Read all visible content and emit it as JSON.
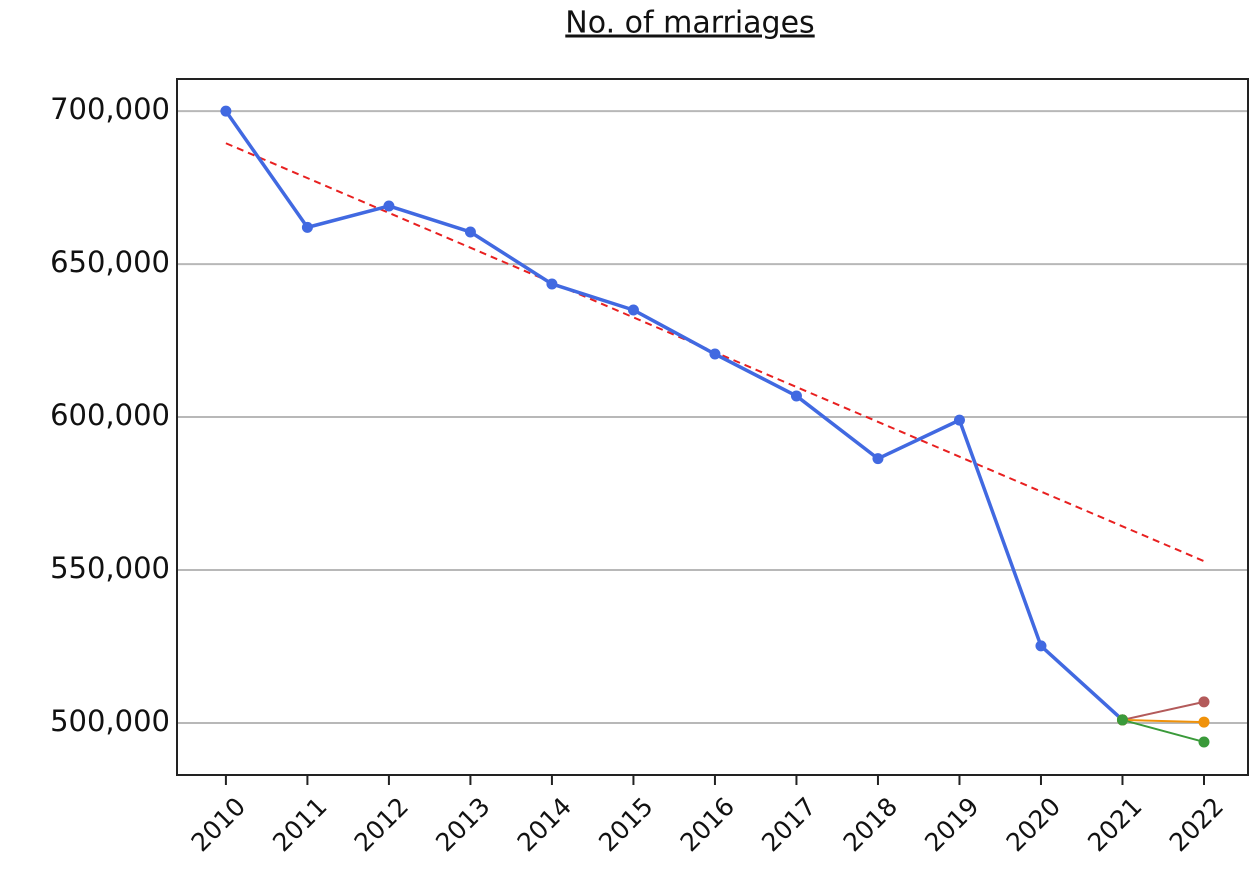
{
  "chart_data": {
    "type": "line",
    "title": "No. of marriages",
    "x": [
      2010,
      2011,
      2012,
      2013,
      2014,
      2015,
      2016,
      2017,
      2018,
      2019,
      2020,
      2021,
      2022
    ],
    "xlim": [
      2009.4,
      2022.54
    ],
    "xticks": [
      2010,
      2011,
      2012,
      2013,
      2014,
      2015,
      2016,
      2017,
      2018,
      2019,
      2020,
      2021,
      2022
    ],
    "ylim": [
      483000,
      710500
    ],
    "yticks": [
      {
        "value": 500000,
        "label": "500,000"
      },
      {
        "value": 550000,
        "label": "550,000"
      },
      {
        "value": 600000,
        "label": "600,000"
      },
      {
        "value": 650000,
        "label": "650,000"
      },
      {
        "value": 700000,
        "label": "700,000"
      }
    ],
    "grid": true,
    "series": [
      {
        "color": "#4169e1",
        "width": 3.5,
        "values": [
          700000,
          662000,
          669000,
          660500,
          643500,
          635000,
          620600,
          606900,
          586400,
          599000,
          525200,
          501000,
          null
        ]
      },
      {
        "color": "#b35a5a",
        "width": 2,
        "values": [
          null,
          null,
          null,
          null,
          null,
          null,
          null,
          null,
          null,
          null,
          null,
          501000,
          506900
        ]
      },
      {
        "color": "#f0920a",
        "width": 2,
        "values": [
          null,
          null,
          null,
          null,
          null,
          null,
          null,
          null,
          null,
          null,
          null,
          501000,
          500300
        ]
      },
      {
        "color": "#3a9a3a",
        "width": 2,
        "values": [
          null,
          null,
          null,
          null,
          null,
          null,
          null,
          null,
          null,
          null,
          null,
          501000,
          493800
        ]
      }
    ],
    "trendline": {
      "color": "#e82020",
      "x": [
        2010,
        2022
      ],
      "values": [
        689500,
        552900
      ]
    }
  }
}
